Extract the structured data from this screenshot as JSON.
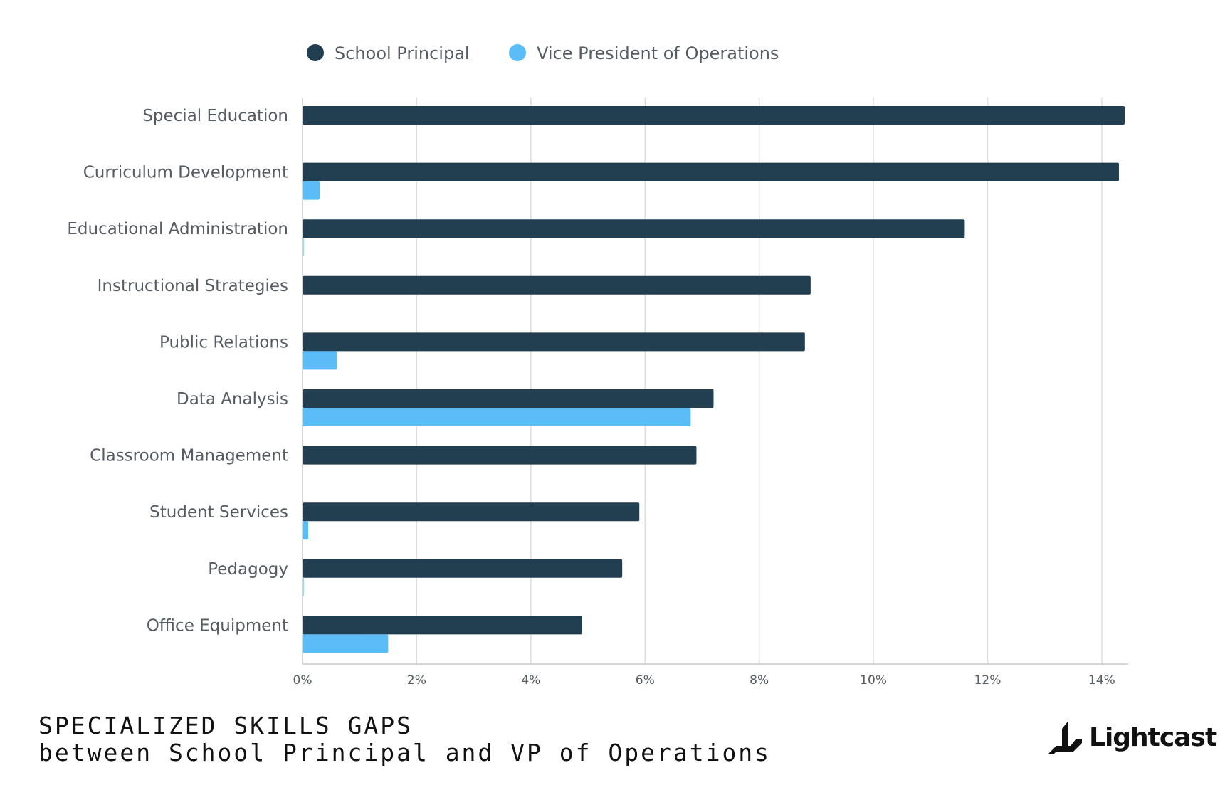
{
  "legend": {
    "items": [
      {
        "label": "School Principal",
        "color": "#213f50"
      },
      {
        "label": "Vice President of Operations",
        "color": "#5bbcf7"
      }
    ]
  },
  "chart_data": {
    "type": "bar",
    "orientation": "horizontal",
    "categories": [
      "Special Education",
      "Curriculum Development",
      "Educational Administration",
      "Instructional Strategies",
      "Public Relations",
      "Data Analysis",
      "Classroom Management",
      "Student Services",
      "Pedagogy",
      "Office Equipment"
    ],
    "series": [
      {
        "name": "School Principal",
        "color": "#213f50",
        "values": [
          14.4,
          14.3,
          11.6,
          8.9,
          8.8,
          7.2,
          6.9,
          5.9,
          5.6,
          4.9
        ]
      },
      {
        "name": "Vice President of Operations",
        "color": "#5bbcf7",
        "values": [
          0,
          0.3,
          0.02,
          0,
          0.6,
          6.8,
          0,
          0.1,
          0.02,
          1.5
        ]
      }
    ],
    "xlim": [
      0,
      14.4
    ],
    "xticks": [
      0,
      2,
      4,
      6,
      8,
      10,
      12,
      14
    ],
    "xtick_labels": [
      "0%",
      "2%",
      "4%",
      "6%",
      "8%",
      "10%",
      "12%",
      "14%"
    ],
    "grid": "vertical",
    "legend_position": "top"
  },
  "caption": {
    "title": "SPECIALIZED SKILLS GAPS",
    "subtitle": "between School Principal and VP of Operations"
  },
  "brand": {
    "name": "Lightcast",
    "icon": "lightcast-logo-icon"
  }
}
